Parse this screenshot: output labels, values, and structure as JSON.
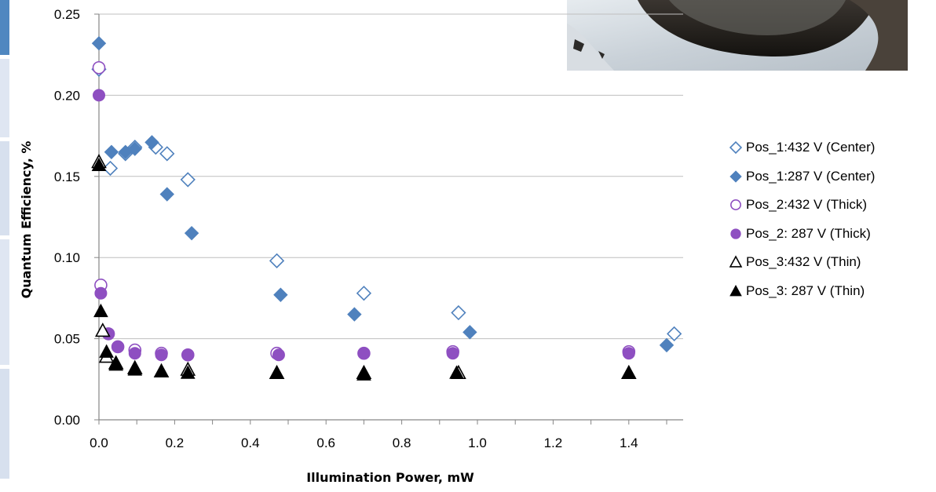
{
  "colors": {
    "blue": "#4f81bd",
    "purple": "#8e4fc1",
    "black": "#000000",
    "grid": "#bfbfbf",
    "axis": "#868686"
  },
  "images": {
    "photo": "cropped photograph of a dark curved object against a light background"
  },
  "chart_data": {
    "type": "scatter",
    "xlabel": "Illumination Power, mW",
    "ylabel": "Quantum Efficiency, %",
    "xlim": [
      0,
      1.55
    ],
    "ylim": [
      0,
      0.25
    ],
    "x_ticks": [
      "0.0",
      "0.2",
      "0.4",
      "0.6",
      "0.8",
      "1.0",
      "1.2",
      "1.4"
    ],
    "y_ticks": [
      "0.00",
      "0.05",
      "0.10",
      "0.15",
      "0.20",
      "0.25"
    ],
    "grid": "horizontal",
    "legend_position": "right",
    "series": [
      {
        "name": "Pos_1:432 V (Center)",
        "marker": "diamond-open",
        "color": "#4f81bd",
        "points": [
          [
            0.0,
            0.216
          ],
          [
            0.03,
            0.155
          ],
          [
            0.07,
            0.164
          ],
          [
            0.095,
            0.168
          ],
          [
            0.15,
            0.168
          ],
          [
            0.18,
            0.164
          ],
          [
            0.235,
            0.148
          ],
          [
            0.47,
            0.098
          ],
          [
            0.7,
            0.078
          ],
          [
            0.95,
            0.066
          ],
          [
            1.52,
            0.053
          ]
        ]
      },
      {
        "name": "Pos_1:287 V (Center)",
        "marker": "diamond-filled",
        "color": "#4f81bd",
        "points": [
          [
            0.0,
            0.232
          ],
          [
            0.033,
            0.165
          ],
          [
            0.07,
            0.165
          ],
          [
            0.095,
            0.167
          ],
          [
            0.14,
            0.171
          ],
          [
            0.18,
            0.139
          ],
          [
            0.245,
            0.115
          ],
          [
            0.48,
            0.077
          ],
          [
            0.675,
            0.065
          ],
          [
            0.98,
            0.054
          ],
          [
            1.5,
            0.046
          ]
        ]
      },
      {
        "name": "Pos_2:432 V (Thick)",
        "marker": "circle-open",
        "color": "#8e4fc1",
        "points": [
          [
            0.0,
            0.217
          ],
          [
            0.005,
            0.083
          ],
          [
            0.025,
            0.053
          ],
          [
            0.05,
            0.045
          ],
          [
            0.095,
            0.043
          ],
          [
            0.165,
            0.041
          ],
          [
            0.235,
            0.04
          ],
          [
            0.47,
            0.041
          ],
          [
            0.7,
            0.041
          ],
          [
            0.935,
            0.042
          ],
          [
            1.4,
            0.042
          ]
        ]
      },
      {
        "name": "Pos_2: 287 V (Thick)",
        "marker": "circle-filled",
        "color": "#8e4fc1",
        "points": [
          [
            0.0,
            0.2
          ],
          [
            0.005,
            0.078
          ],
          [
            0.025,
            0.053
          ],
          [
            0.05,
            0.045
          ],
          [
            0.095,
            0.041
          ],
          [
            0.165,
            0.04
          ],
          [
            0.235,
            0.04
          ],
          [
            0.475,
            0.04
          ],
          [
            0.7,
            0.041
          ],
          [
            0.935,
            0.041
          ],
          [
            1.4,
            0.041
          ]
        ]
      },
      {
        "name": "Pos_3:432 V (Thin)",
        "marker": "triangle-open",
        "color": "#000000",
        "points": [
          [
            0.0,
            0.159
          ],
          [
            0.01,
            0.055
          ],
          [
            0.02,
            0.039
          ],
          [
            0.045,
            0.035
          ],
          [
            0.095,
            0.032
          ],
          [
            0.165,
            0.03
          ],
          [
            0.235,
            0.031
          ],
          [
            0.47,
            0.029
          ],
          [
            0.7,
            0.029
          ],
          [
            0.95,
            0.029
          ],
          [
            1.4,
            0.029
          ]
        ]
      },
      {
        "name": "Pos_3: 287 V (Thin)",
        "marker": "triangle-filled",
        "color": "#000000",
        "points": [
          [
            0.0,
            0.157
          ],
          [
            0.005,
            0.067
          ],
          [
            0.02,
            0.042
          ],
          [
            0.045,
            0.034
          ],
          [
            0.095,
            0.031
          ],
          [
            0.165,
            0.03
          ],
          [
            0.235,
            0.029
          ],
          [
            0.47,
            0.029
          ],
          [
            0.7,
            0.028
          ],
          [
            0.945,
            0.029
          ],
          [
            1.4,
            0.029
          ]
        ]
      }
    ]
  }
}
